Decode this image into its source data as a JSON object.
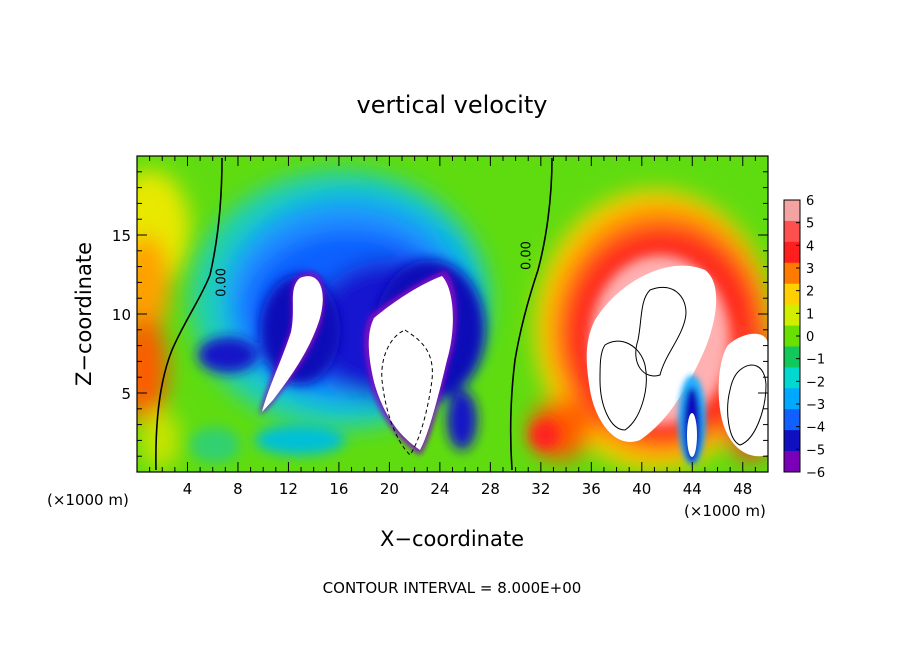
{
  "chart_data": {
    "type": "heatmap",
    "title": "vertical velocity",
    "xlabel": "X−coordinate",
    "ylabel": "Z−coordinate",
    "x_unit_left": "(×1000 m)",
    "x_unit_right": "(×1000 m)",
    "xlim": [
      0,
      50
    ],
    "ylim": [
      0,
      20
    ],
    "xticks": [
      4,
      8,
      12,
      16,
      20,
      24,
      28,
      32,
      36,
      40,
      44,
      48
    ],
    "yticks": [
      5,
      10,
      15
    ],
    "contour_labels": [
      {
        "text": "0.00",
        "x": 7,
        "z": 12
      },
      {
        "text": "0.00",
        "x": 31.2,
        "z": 13.7
      }
    ],
    "colorbar": {
      "levels": [
        6,
        5,
        4,
        3,
        2,
        1,
        0,
        -1,
        -2,
        -3,
        -4,
        -5,
        -6
      ],
      "labels": [
        "6",
        "5",
        "4",
        "3",
        "2",
        "1",
        "0",
        "−1",
        "−2",
        "−3",
        "−4",
        "−5",
        "−6"
      ],
      "colors": [
        "#f4a3a3",
        "#ff5050",
        "#ff1e1e",
        "#ff7a00",
        "#ffd000",
        "#d2ee00",
        "#6ae000",
        "#12c85a",
        "#00d8d0",
        "#00a8ff",
        "#1060ff",
        "#1010c0",
        "#7a00b8"
      ]
    },
    "grid": false,
    "footer": "CONTOUR INTERVAL = 8.000E+00"
  }
}
